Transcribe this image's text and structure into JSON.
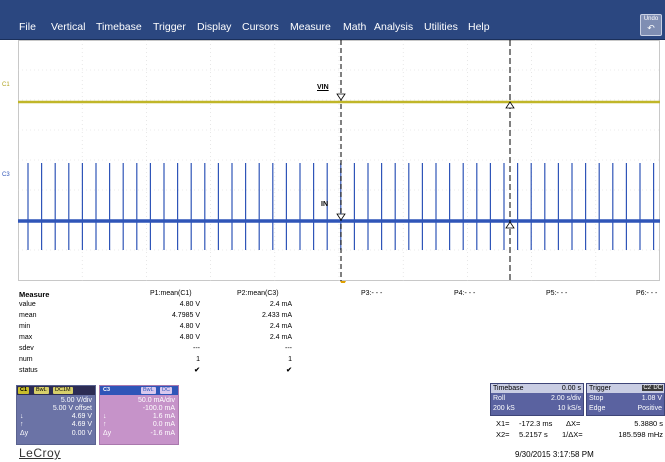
{
  "menu": {
    "items": [
      "File",
      "Vertical",
      "Timebase",
      "Trigger",
      "Display",
      "Cursors",
      "Measure",
      "Math",
      "Analysis",
      "Utilities",
      "Help"
    ],
    "undo": "Undo"
  },
  "grid": {
    "markers": {
      "vin": "VIN",
      "in": "IN",
      "c1": "C1",
      "c3": "C3"
    }
  },
  "colors": {
    "c1": "#c0b628",
    "c3": "#2f55b8",
    "menu": "#2b4780"
  },
  "measure": {
    "title": "Measure",
    "row_labels": [
      "value",
      "mean",
      "min",
      "max",
      "sdev",
      "num",
      "status"
    ],
    "params": [
      {
        "name": "P1:mean(C1)",
        "values": [
          "4.80 V",
          "4.7985 V",
          "4.80 V",
          "4.80 V",
          "---",
          "1",
          "✔"
        ]
      },
      {
        "name": "P2:mean(C3)",
        "values": [
          "2.4 mA",
          "2.433 mA",
          "2.4 mA",
          "2.4 mA",
          "---",
          "1",
          "✔"
        ]
      },
      {
        "name": "P3:- - -",
        "values": []
      },
      {
        "name": "P4:- - -",
        "values": []
      },
      {
        "name": "P5:- - -",
        "values": []
      },
      {
        "name": "P6:- - -",
        "values": []
      }
    ]
  },
  "c1": {
    "label": "C1",
    "tags": [
      "BwL",
      "DC1M"
    ],
    "vdiv": "5.00 V/div",
    "offset": "5.00 V offset",
    "r1": "4.69 V",
    "r2": "4.69 V",
    "r3": "0.00 V",
    "icon1": "↓",
    "icon2": "↑",
    "dy": "Δy"
  },
  "c3": {
    "label": "C3",
    "tags": [
      "BwL",
      "DC"
    ],
    "vdiv": "50.0 mA/div",
    "offset": "-100.0 mA",
    "r1": "1.6 mA",
    "r2": "0.0 mA",
    "r3": "-1.6 mA",
    "icon1": "↓",
    "icon2": "↑",
    "dy": "Δy"
  },
  "timebase": {
    "label": "Timebase",
    "delay": "0.00 s",
    "mode": "Roll",
    "tdiv": "2.00 s/div",
    "samples": "200 kS",
    "rate": "10 kS/s"
  },
  "trigger": {
    "label": "Trigger",
    "src": "C2",
    "coupling": "DC",
    "state": "Stop",
    "level": "1.08 V",
    "type": "Edge",
    "slope": "Positive"
  },
  "cursors": {
    "x1_label": "X1=",
    "x1": "-172.3 ms",
    "dx_label": "ΔX=",
    "dx": "5.3880 s",
    "x2_label": "X2=",
    "x2": "5.2157 s",
    "inv_label": "1/ΔX=",
    "inv": "185.598 mHz"
  },
  "brand": "LeCroy",
  "datetime": "9/30/2015 3:17:58 PM"
}
